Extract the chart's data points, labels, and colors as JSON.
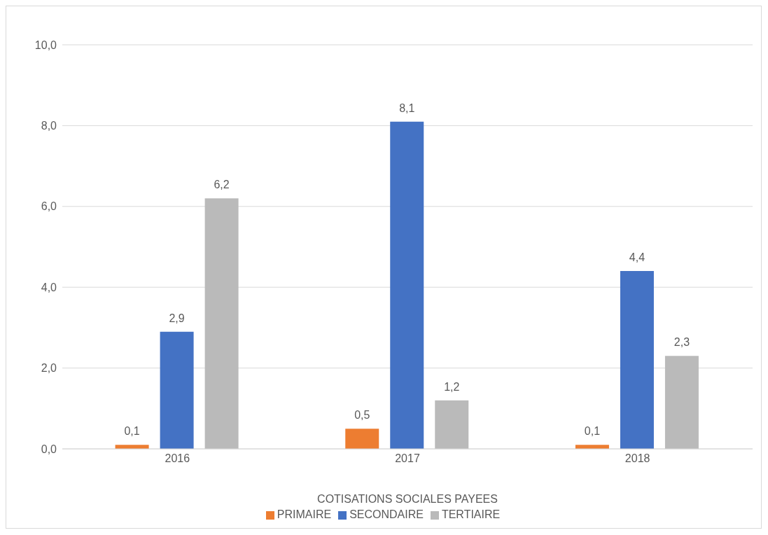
{
  "chart_data": {
    "type": "bar",
    "xlabel": "COTISATIONS SOCIALES PAYEES",
    "categories": [
      "2016",
      "2017",
      "2018"
    ],
    "series": [
      {
        "name": "PRIMAIRE",
        "color": "#ed7d31",
        "values": [
          0.1,
          0.5,
          0.1
        ],
        "value_labels": [
          "0,1",
          "0,5",
          "0,1"
        ]
      },
      {
        "name": "SECONDAIRE",
        "color": "#4472c4",
        "values": [
          2.9,
          8.1,
          4.4
        ],
        "value_labels": [
          "2,9",
          "8,1",
          "4,4"
        ]
      },
      {
        "name": "TERTIAIRE",
        "color": "#bababa",
        "values": [
          6.2,
          1.2,
          2.3
        ],
        "value_labels": [
          "6,2",
          "1,2",
          "2,3"
        ]
      }
    ],
    "ylim": [
      0,
      10
    ],
    "yticks": [
      {
        "value": 0,
        "label": "0,0"
      },
      {
        "value": 2,
        "label": "2,0"
      },
      {
        "value": 4,
        "label": "4,0"
      },
      {
        "value": 6,
        "label": "6,0"
      },
      {
        "value": 8,
        "label": "8,0"
      },
      {
        "value": 10,
        "label": "10,0"
      }
    ],
    "grid": "y",
    "legend": "bottom"
  }
}
